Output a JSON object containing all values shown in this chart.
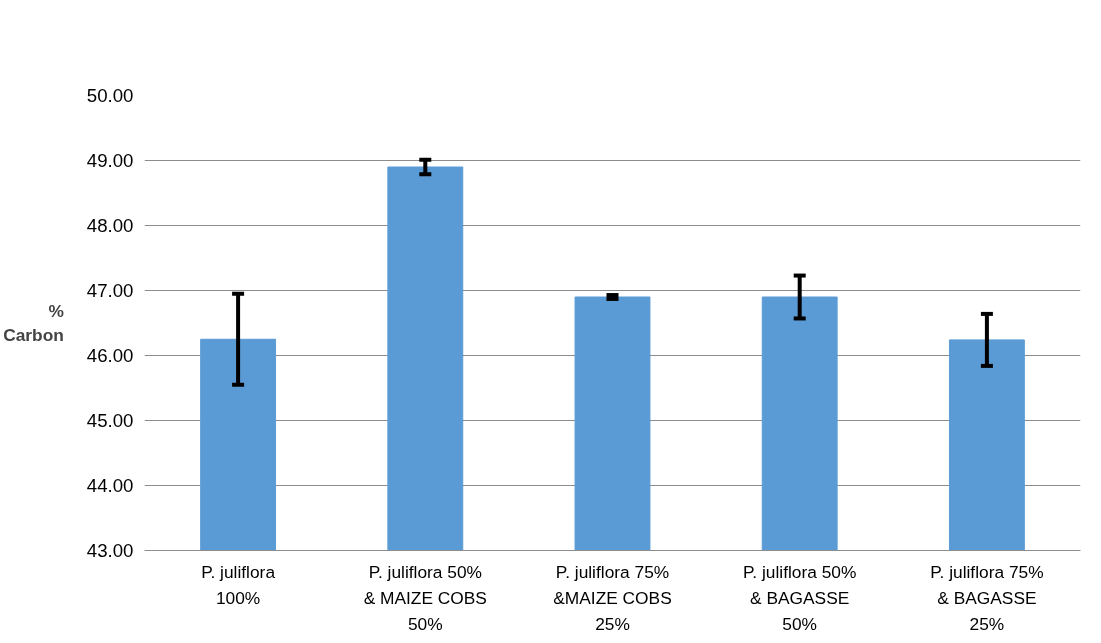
{
  "chart_data": {
    "type": "bar",
    "ylabel": "%\nCarbon",
    "categories": [
      "P. juliflora\n100%",
      "P. juliflora 50%\n& MAIZE COBS\n50%",
      "P. juliflora 75%\n&MAIZE COBS\n25%",
      "P. juliflora 50%\n& BAGASSE\n50%",
      "P. juliflora 75%\n& BAGASSE\n25%"
    ],
    "values": [
      46.25,
      48.9,
      46.9,
      46.9,
      46.24
    ],
    "errors": [
      0.7,
      0.11,
      0.03,
      0.33,
      0.4
    ],
    "color": "#5b9bd5",
    "ylim": [
      43,
      50
    ],
    "yticks": [
      {
        "value": 43,
        "label": "43.00"
      },
      {
        "value": 44,
        "label": "44.00"
      },
      {
        "value": 45,
        "label": "45.00"
      },
      {
        "value": 46,
        "label": "46.00"
      },
      {
        "value": 47,
        "label": "47.00"
      },
      {
        "value": 48,
        "label": "48.00"
      },
      {
        "value": 49,
        "label": "49.00"
      },
      {
        "value": 50,
        "label": "50.00"
      }
    ],
    "grid": "y"
  }
}
